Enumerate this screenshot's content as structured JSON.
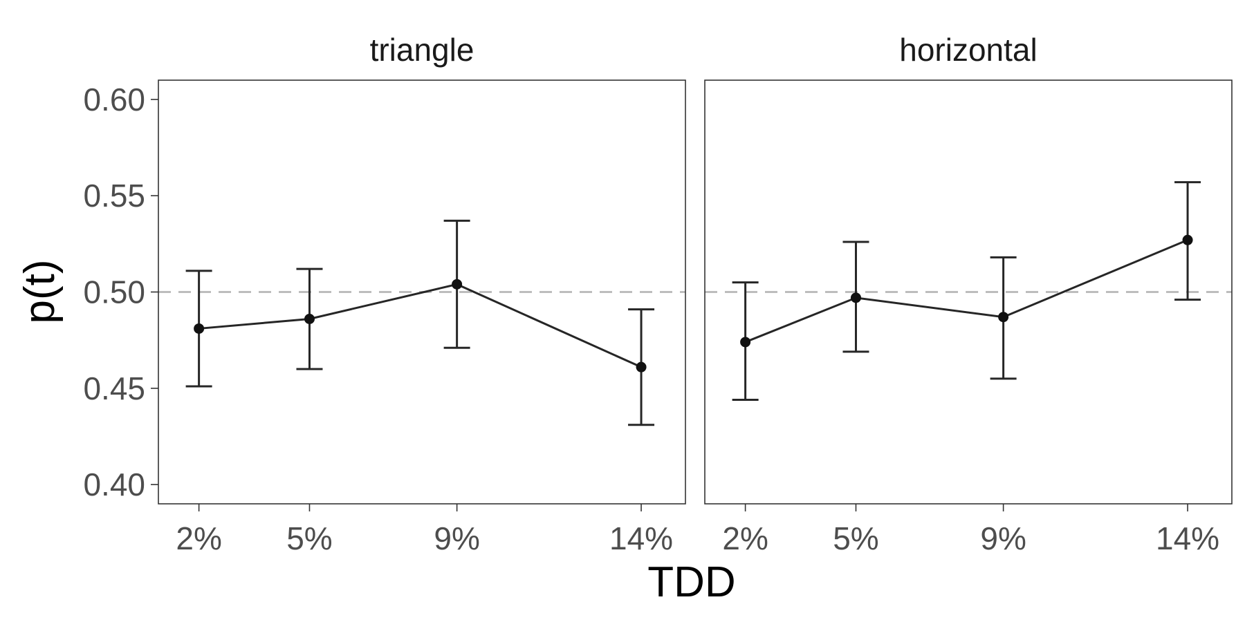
{
  "chart_data": {
    "type": "line",
    "xlabel": "TDD",
    "ylabel": "p(t)",
    "ylim": [
      0.39,
      0.61
    ],
    "y_ticks": [
      0.4,
      0.45,
      0.5,
      0.55,
      0.6
    ],
    "y_tick_labels": [
      "0.40",
      "0.45",
      "0.50",
      "0.55",
      "0.60"
    ],
    "x_ticks": [
      2,
      5,
      9,
      14
    ],
    "x_tick_labels": [
      "2%",
      "5%",
      "9%",
      "14%"
    ],
    "xlim": [
      0.9,
      15.2
    ],
    "reference_line": 0.5,
    "grid": false,
    "facets": [
      {
        "title": "triangle",
        "x": [
          2,
          5,
          9,
          14
        ],
        "y": [
          0.481,
          0.486,
          0.504,
          0.461
        ],
        "y_low": [
          0.451,
          0.46,
          0.471,
          0.431
        ],
        "y_high": [
          0.511,
          0.512,
          0.537,
          0.491
        ]
      },
      {
        "title": "horizontal",
        "x": [
          2,
          5,
          9,
          14
        ],
        "y": [
          0.474,
          0.497,
          0.487,
          0.527
        ],
        "y_low": [
          0.444,
          0.469,
          0.455,
          0.496
        ],
        "y_high": [
          0.505,
          0.526,
          0.518,
          0.557
        ]
      }
    ]
  },
  "colors": {
    "series": "#262626",
    "reference": "#bdbdbd",
    "frame": "#333333",
    "tick_text": "#4d4d4d"
  }
}
